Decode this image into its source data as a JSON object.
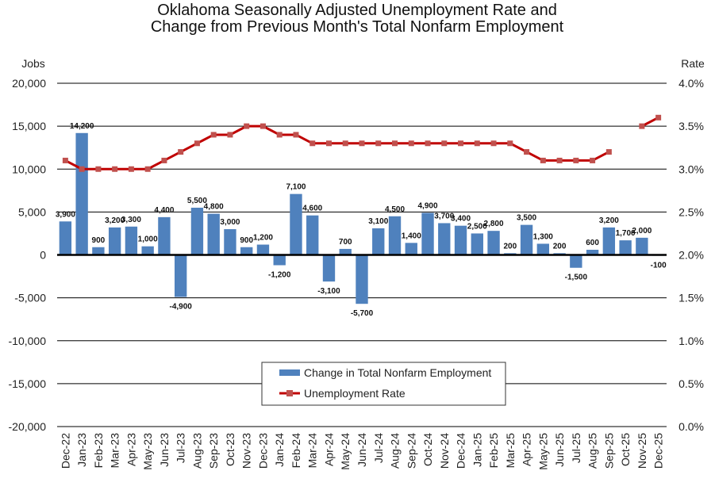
{
  "chart_data": {
    "type": "bar+line",
    "title": [
      "Oklahoma Seasonally Adjusted Unemployment Rate and",
      "Change from Previous Month's Total Nonfarm Employment"
    ],
    "ylabel_left": "Jobs",
    "ylabel_right": "Rate",
    "ylim_left": [
      -20000,
      20000
    ],
    "ylim_right": [
      0.0,
      4.0
    ],
    "yticks_left": [
      "20,000",
      "15,000",
      "10,000",
      "5,000",
      "0",
      "-5,000",
      "-10,000",
      "-15,000",
      "-20,000"
    ],
    "yticks_right": [
      "4.0%",
      "3.5%",
      "3.0%",
      "2.5%",
      "2.0%",
      "1.5%",
      "1.0%",
      "0.5%",
      "0.0%"
    ],
    "grid": true,
    "legend_placement": "bottom-center",
    "categories": [
      "Dec-22",
      "Jan-23",
      "Feb-23",
      "Mar-23",
      "Apr-23",
      "May-23",
      "Jun-23",
      "Jul-23",
      "Aug-23",
      "Sep-23",
      "Oct-23",
      "Nov-23",
      "Dec-23",
      "Jan-24",
      "Feb-24",
      "Mar-24",
      "Apr-24",
      "May-24",
      "Jun-24",
      "Jul-24",
      "Aug-24",
      "Sep-24",
      "Oct-24",
      "Nov-24",
      "Dec-24",
      "Jan-25",
      "Feb-25",
      "Mar-25",
      "Apr-25",
      "May-25",
      "Jun-25",
      "Jul-25",
      "Aug-25",
      "Sep-25",
      "Oct-25",
      "Nov-25",
      "Dec-25"
    ],
    "series": [
      {
        "name": "Change in Total Nonfarm Employment",
        "type": "bar",
        "axis": "left",
        "color": "#4f81bd",
        "values": [
          3900,
          14200,
          900,
          3200,
          3300,
          1000,
          4400,
          -4900,
          5500,
          4800,
          3000,
          900,
          1200,
          -1200,
          7100,
          4600,
          -3100,
          700,
          -5700,
          3100,
          4500,
          1400,
          4900,
          3700,
          3400,
          2500,
          2800,
          200,
          3500,
          1300,
          200,
          -1500,
          600,
          3200,
          1700,
          2000,
          -100
        ],
        "labels": [
          "3,900",
          "14,200",
          "900",
          "3,200",
          "3,300",
          "1,000",
          "4,400",
          "-4,900",
          "5,500",
          "4,800",
          "3,000",
          "900",
          "1,200",
          "-1,200",
          "7,100",
          "4,600",
          "-3,100",
          "700",
          "-5,700",
          "3,100",
          "4,500",
          "1,400",
          "4,900",
          "3,700",
          "3,400",
          "2,500",
          "2,800",
          "200",
          "3,500",
          "1,300",
          "200",
          "-1,500",
          "600",
          "3,200",
          "1,700",
          "2,000",
          "-100"
        ]
      },
      {
        "name": "Unemployment Rate",
        "type": "line",
        "axis": "right",
        "color": "#c00000",
        "marker_color": "#c0504d",
        "values": [
          3.1,
          3.0,
          3.0,
          3.0,
          3.0,
          3.0,
          3.1,
          3.2,
          3.3,
          3.4,
          3.4,
          3.5,
          3.5,
          3.4,
          3.4,
          3.3,
          3.3,
          3.3,
          3.3,
          3.3,
          3.3,
          3.3,
          3.3,
          3.3,
          3.3,
          3.3,
          3.3,
          3.3,
          3.2,
          3.1,
          3.1,
          3.1,
          3.1,
          3.2,
          null,
          3.5,
          3.6
        ]
      }
    ]
  }
}
